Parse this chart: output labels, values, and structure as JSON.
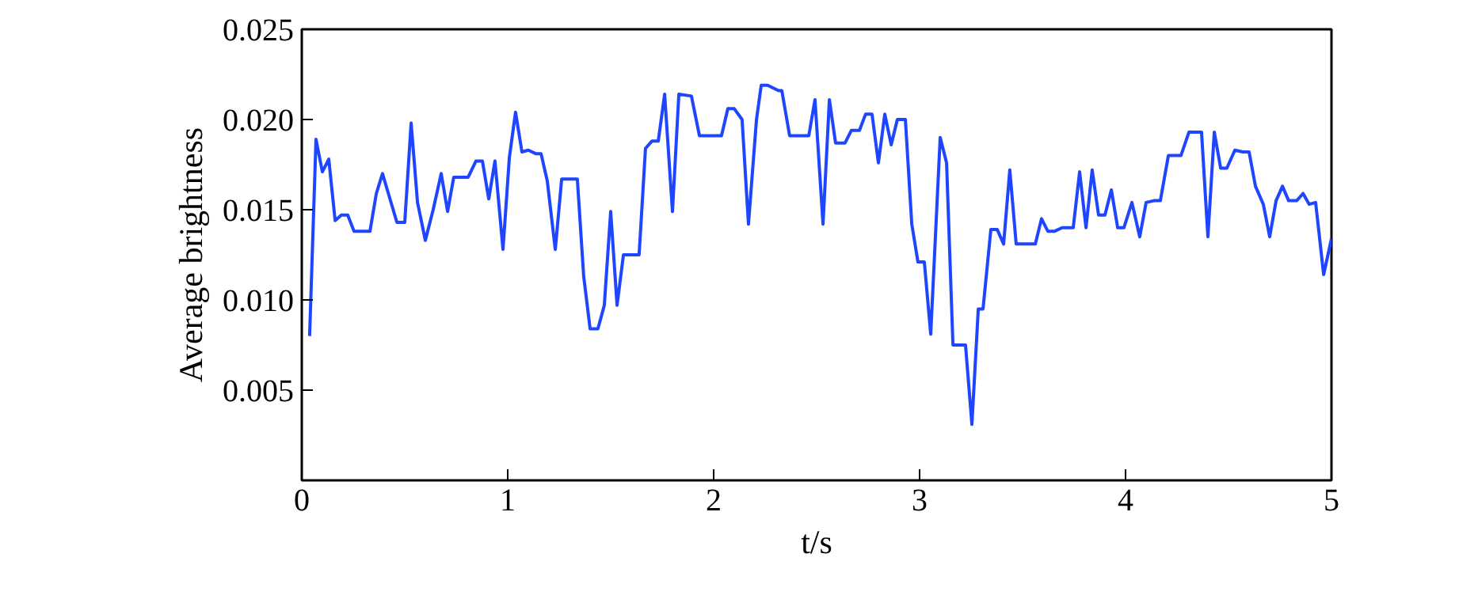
{
  "chart_data": {
    "type": "line",
    "xlabel": "t/s",
    "ylabel": "Average brightness",
    "xlim": [
      0,
      5
    ],
    "xticks": [
      0,
      1,
      2,
      3,
      4,
      5
    ],
    "ylim": [
      0,
      0.025
    ],
    "yticks": [
      0.005,
      {
        "value": 0.01,
        "label": "0.010"
      },
      0.015,
      {
        "value": 0.02,
        "label": "0.020"
      },
      0.025
    ],
    "grid": false,
    "marker": "none",
    "line_style": "solid",
    "series": [
      {
        "color": "#1f46ff",
        "x": [
          0.038,
          0.069,
          0.1,
          0.131,
          0.162,
          0.192,
          0.223,
          0.254,
          0.331,
          0.362,
          0.392,
          0.423,
          0.462,
          0.5,
          0.531,
          0.562,
          0.6,
          0.638,
          0.677,
          0.708,
          0.738,
          0.808,
          0.846,
          0.877,
          0.908,
          0.938,
          0.977,
          1.008,
          1.038,
          1.069,
          1.1,
          1.138,
          1.162,
          1.192,
          1.231,
          1.262,
          1.338,
          1.369,
          1.4,
          1.438,
          1.469,
          1.5,
          1.531,
          1.562,
          1.638,
          1.669,
          1.7,
          1.731,
          1.762,
          1.8,
          1.831,
          1.892,
          1.931,
          2.038,
          2.069,
          2.1,
          2.138,
          2.169,
          2.208,
          2.231,
          2.262,
          2.315,
          2.331,
          2.369,
          2.462,
          2.492,
          2.531,
          2.562,
          2.592,
          2.638,
          2.669,
          2.708,
          2.738,
          2.769,
          2.8,
          2.831,
          2.862,
          2.892,
          2.931,
          2.962,
          2.992,
          3.023,
          3.054,
          3.1,
          3.131,
          3.162,
          3.223,
          3.254,
          3.285,
          3.308,
          3.346,
          3.377,
          3.408,
          3.438,
          3.469,
          3.562,
          3.592,
          3.623,
          3.654,
          3.692,
          3.746,
          3.777,
          3.808,
          3.838,
          3.869,
          3.9,
          3.931,
          3.962,
          3.992,
          4.031,
          4.069,
          4.1,
          4.138,
          4.169,
          4.208,
          4.269,
          4.308,
          4.369,
          4.4,
          4.431,
          4.462,
          4.492,
          4.531,
          4.569,
          4.6,
          4.631,
          4.669,
          4.7,
          4.731,
          4.762,
          4.792,
          4.831,
          4.862,
          4.892,
          4.923,
          4.962,
          5.0
        ],
        "values": [
          0.008,
          0.0189,
          0.0171,
          0.0178,
          0.0144,
          0.0147,
          0.0147,
          0.0138,
          0.0138,
          0.0159,
          0.017,
          0.0158,
          0.0143,
          0.0143,
          0.0198,
          0.0154,
          0.0133,
          0.015,
          0.017,
          0.0149,
          0.0168,
          0.0168,
          0.0177,
          0.0177,
          0.0156,
          0.0177,
          0.0128,
          0.0179,
          0.0204,
          0.0182,
          0.0183,
          0.0181,
          0.0181,
          0.0166,
          0.0128,
          0.0167,
          0.0167,
          0.0113,
          0.0084,
          0.0084,
          0.0097,
          0.0149,
          0.0097,
          0.0125,
          0.0125,
          0.0184,
          0.0188,
          0.0188,
          0.0214,
          0.0149,
          0.0214,
          0.0213,
          0.0191,
          0.0191,
          0.0206,
          0.0206,
          0.02,
          0.0142,
          0.02,
          0.0219,
          0.0219,
          0.0216,
          0.0216,
          0.0191,
          0.0191,
          0.0211,
          0.0142,
          0.0211,
          0.0187,
          0.0187,
          0.0194,
          0.0194,
          0.0203,
          0.0203,
          0.0176,
          0.0203,
          0.0186,
          0.02,
          0.02,
          0.0142,
          0.0121,
          0.0121,
          0.0081,
          0.019,
          0.0176,
          0.0075,
          0.0075,
          0.0031,
          0.0095,
          0.0095,
          0.0139,
          0.0139,
          0.0131,
          0.0172,
          0.0131,
          0.0131,
          0.0145,
          0.0138,
          0.0138,
          0.014,
          0.014,
          0.0171,
          0.014,
          0.0172,
          0.0147,
          0.0147,
          0.0161,
          0.014,
          0.014,
          0.0154,
          0.0135,
          0.0154,
          0.0155,
          0.0155,
          0.018,
          0.018,
          0.0193,
          0.0193,
          0.0135,
          0.0193,
          0.0173,
          0.0173,
          0.0183,
          0.0182,
          0.0182,
          0.0163,
          0.0153,
          0.0135,
          0.0155,
          0.0163,
          0.0155,
          0.0155,
          0.0159,
          0.0153,
          0.0154,
          0.0114,
          0.0134
        ]
      }
    ]
  }
}
